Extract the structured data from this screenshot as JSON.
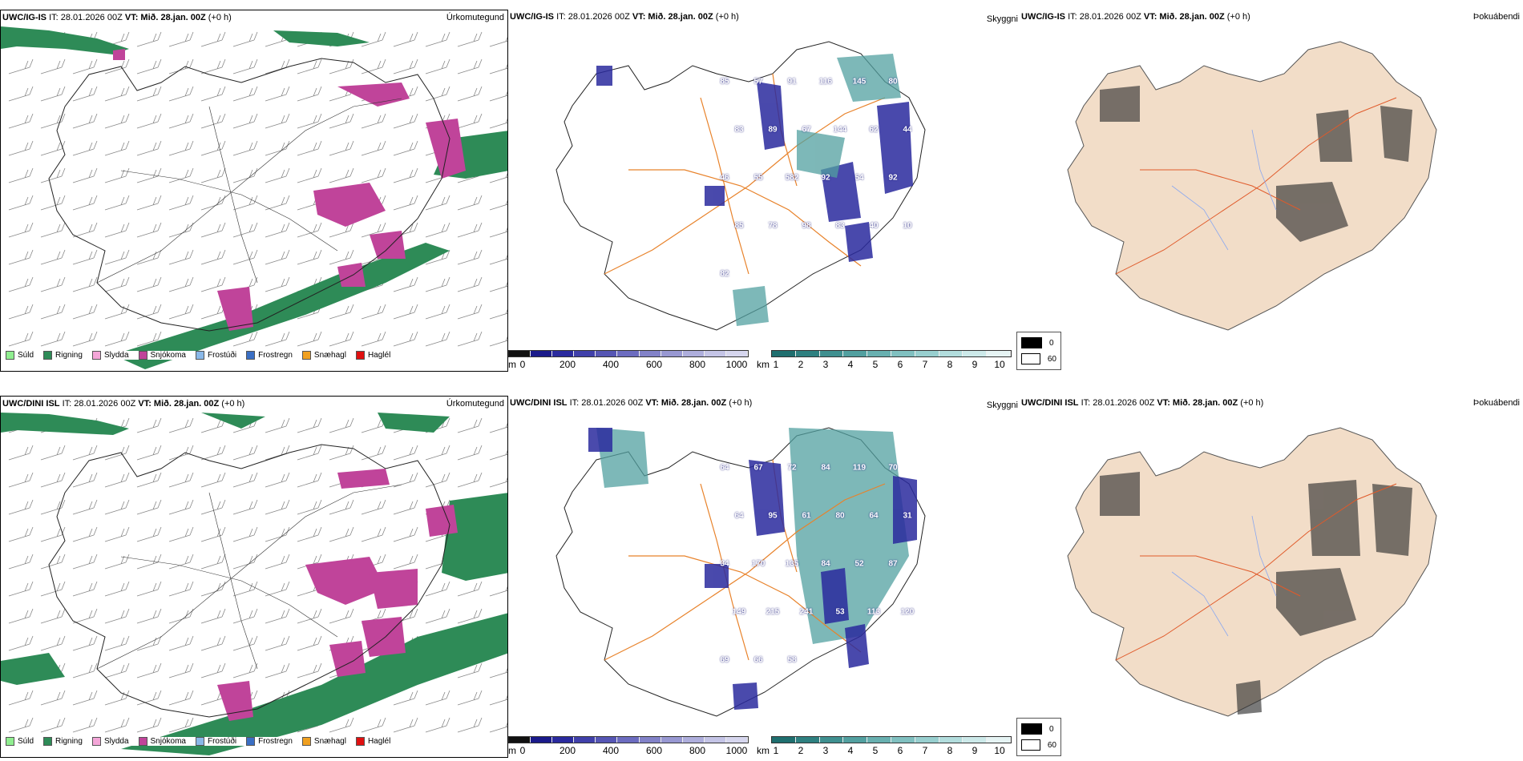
{
  "rows": [
    {
      "model_label": "UWC/IG-IS",
      "header_it": "IT: 28.01.2026 00Z",
      "header_vt_label": "VT:",
      "header_vt_value": "Mið. 28.jan. 00Z",
      "header_offset": "(+0 h)",
      "precip_title": "Úrkomutegund",
      "vis_title": "Skyggni",
      "cloud_title": "Þokuábendi",
      "vis_labels": [
        "85",
        "57",
        "91",
        "116",
        "145",
        "80",
        "83",
        "89",
        "67",
        "144",
        "62",
        "44",
        "46",
        "55",
        "582",
        "92",
        "54",
        "92",
        "85",
        "78",
        "98",
        "83",
        "40",
        "10",
        "82"
      ]
    },
    {
      "model_label": "UWC/DINI ISL",
      "header_it": "IT: 28.01.2026 00Z",
      "header_vt_label": "VT:",
      "header_vt_value": "Mið. 28.jan. 00Z",
      "header_offset": "(+0 h)",
      "precip_title": "Úrkomutegund",
      "vis_title": "Skyggni",
      "cloud_title": "Þokuábendi",
      "vis_labels": [
        "64",
        "67",
        "72",
        "84",
        "119",
        "70",
        "64",
        "95",
        "61",
        "80",
        "64",
        "31",
        "34",
        "170",
        "135",
        "84",
        "52",
        "87",
        "149",
        "215",
        "241",
        "53",
        "113",
        "120",
        "69",
        "66",
        "58"
      ]
    }
  ],
  "precip_legend": [
    {
      "label": "Súld",
      "color": "#90ee90"
    },
    {
      "label": "Rigning",
      "color": "#2e8b57"
    },
    {
      "label": "Slydda",
      "color": "#f4a6d8"
    },
    {
      "label": "Snjókoma",
      "color": "#c0449a"
    },
    {
      "label": "Frostúði",
      "color": "#8ab8e8"
    },
    {
      "label": "Frostregn",
      "color": "#3a6fc4"
    },
    {
      "label": "Snæhagl",
      "color": "#f0a020"
    },
    {
      "label": "Haglél",
      "color": "#e01010"
    }
  ],
  "ceiling_bar": {
    "unit": "m",
    "ticks": [
      "0",
      "200",
      "400",
      "600",
      "800",
      "1000"
    ],
    "colors": [
      "#111111",
      "#1a1a8a",
      "#2a2a9e",
      "#4040aa",
      "#5656b4",
      "#6c6cc0",
      "#8282c8",
      "#9898d2",
      "#aeaedc",
      "#c4c4e6",
      "#d6d6ee"
    ]
  },
  "vis_bar": {
    "unit": "km",
    "ticks": [
      "1",
      "2",
      "3",
      "4",
      "5",
      "6",
      "7",
      "8",
      "9",
      "10"
    ],
    "colors": [
      "#1f6f6f",
      "#2e8080",
      "#3f9090",
      "#52a0a0",
      "#68b0b0",
      "#80c0c0",
      "#98cfcf",
      "#b2dddd",
      "#cce9e9",
      "#e6f4f4"
    ]
  },
  "cloud_legend": [
    {
      "label": "0",
      "color": "#000000"
    },
    {
      "label": "60",
      "color": "#ffffff"
    }
  ],
  "colors": {
    "rain": "#2e8b57",
    "snow": "#c0449a",
    "road": "#e8822a",
    "cloud_land": "#f2ddc8",
    "river": "#8aa8f0"
  }
}
